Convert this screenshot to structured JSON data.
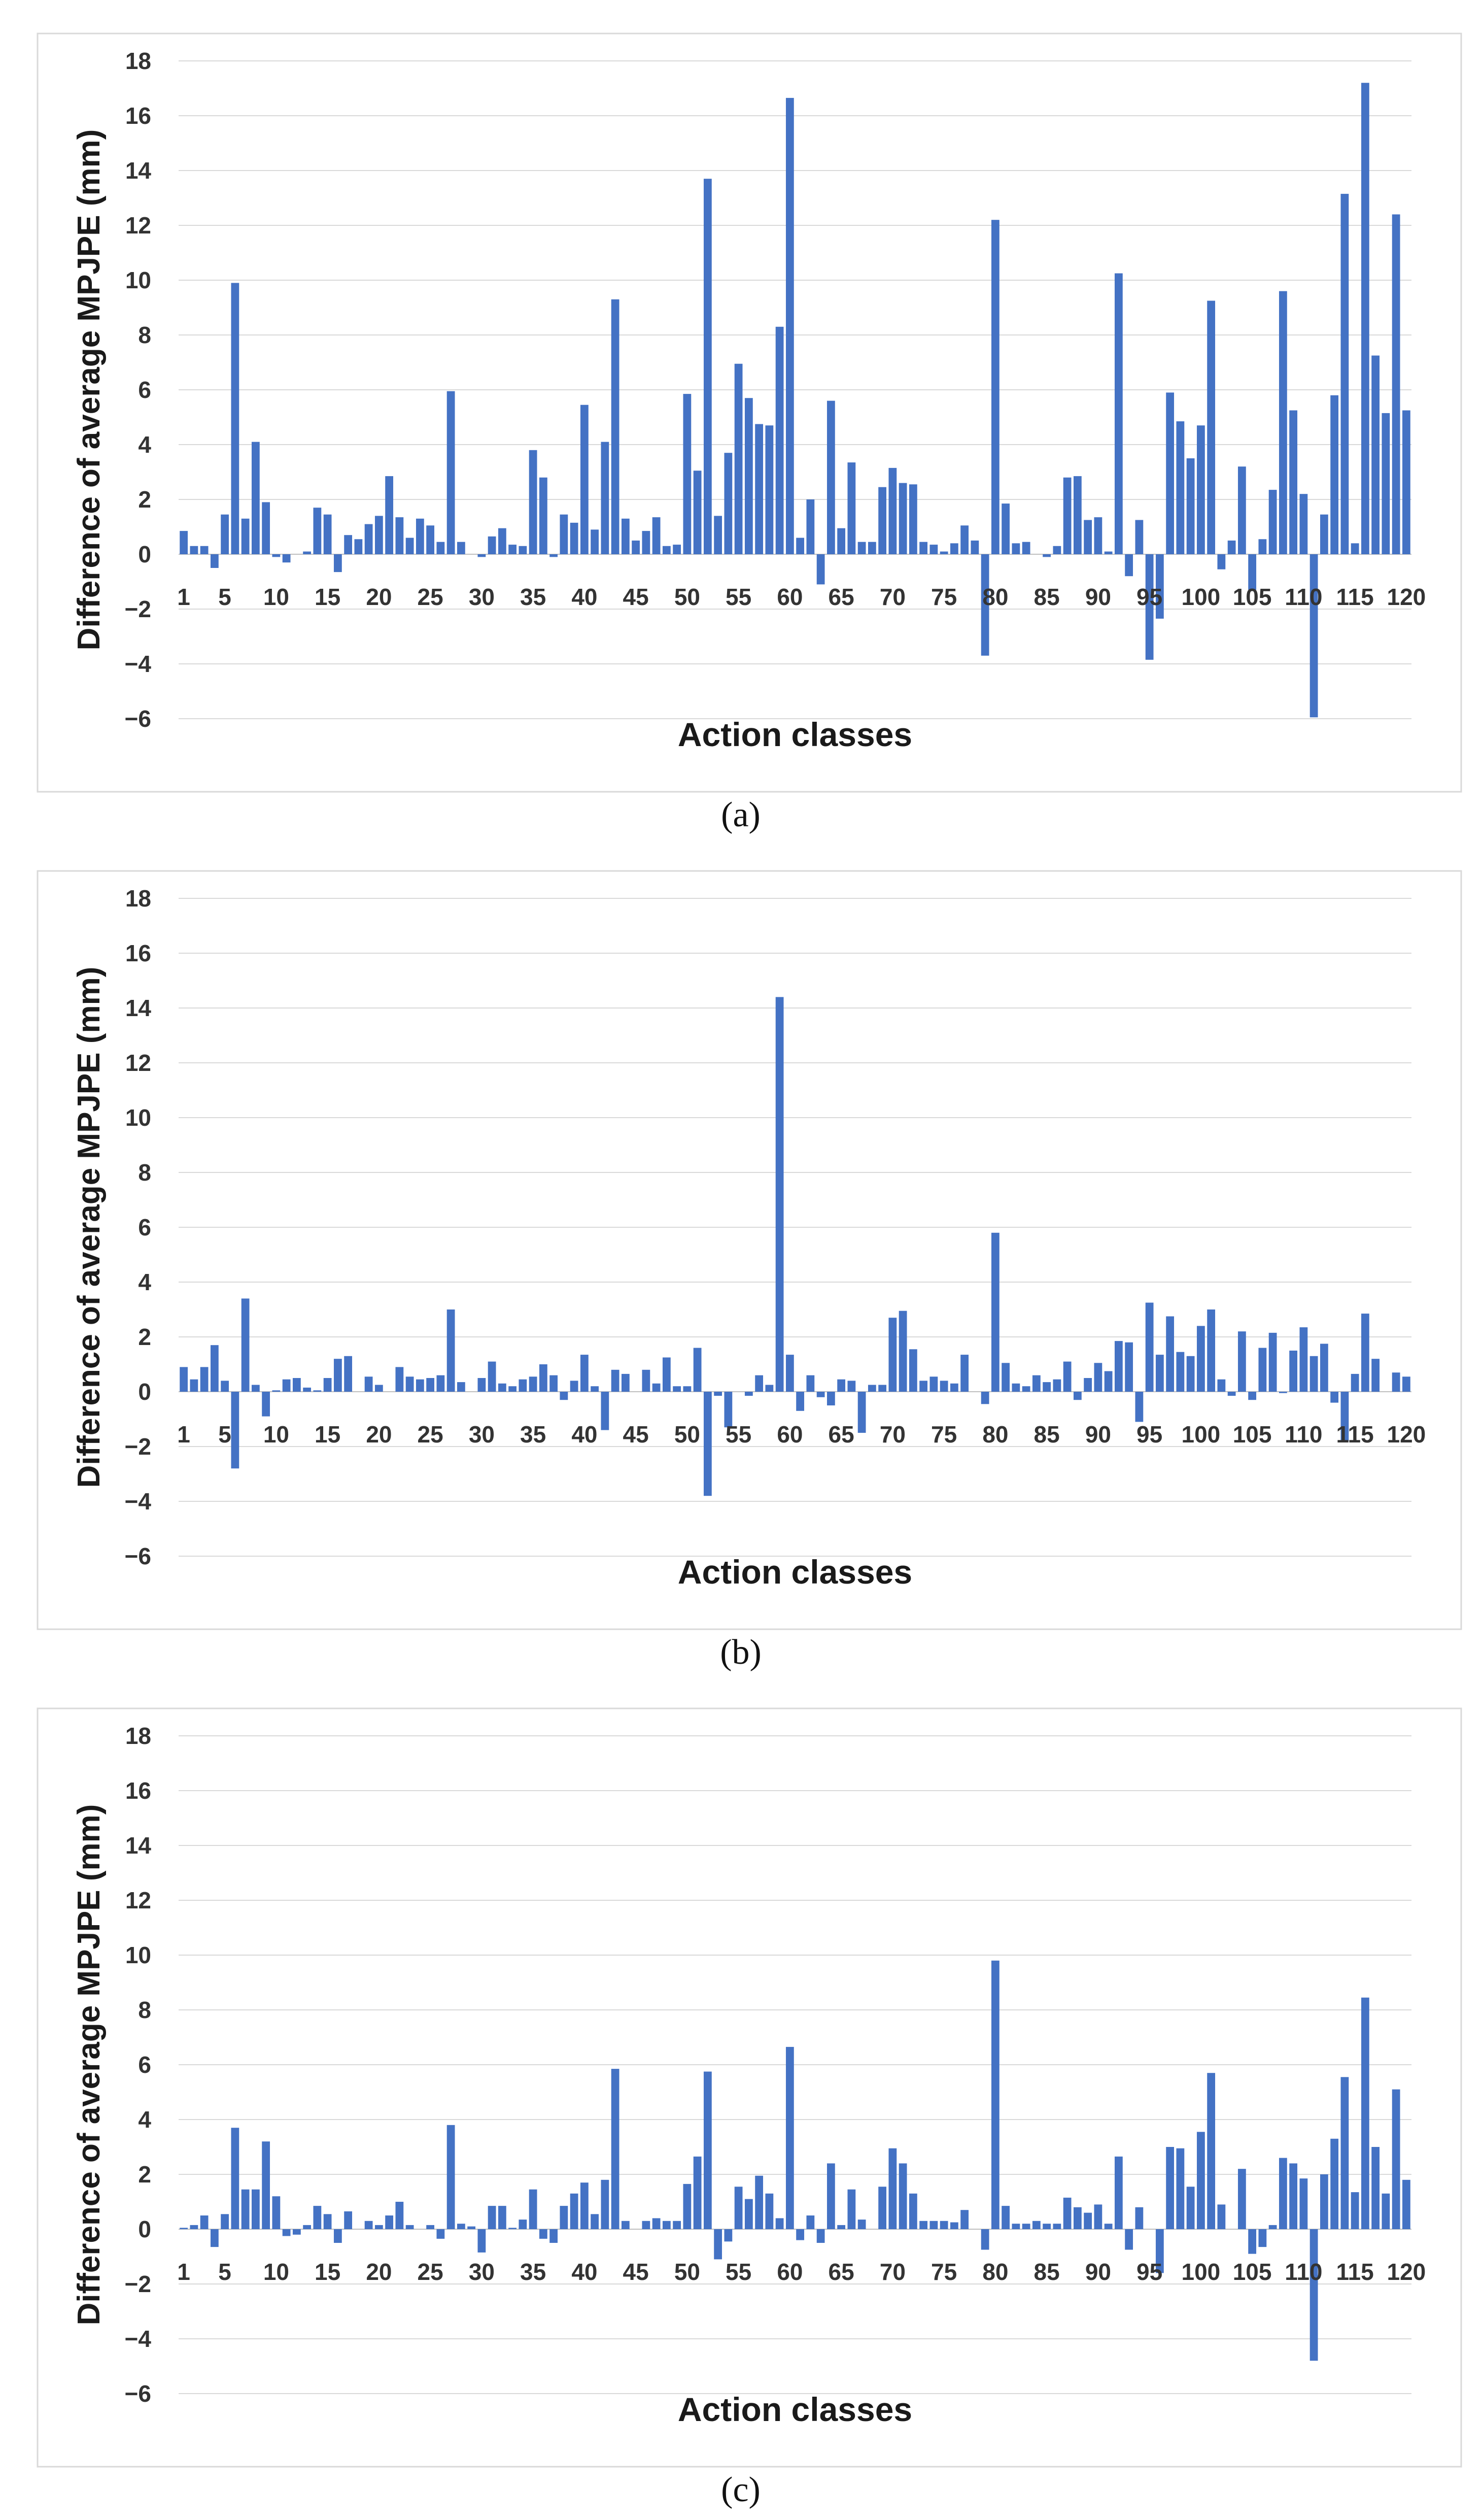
{
  "bar_color": "#4472C4",
  "chart_data": [
    {
      "type": "bar",
      "caption": "(a)",
      "title": "",
      "xlabel": "Action classes",
      "ylabel": "Difference of average MPJPE (mm)",
      "ylim": [
        -6,
        18
      ],
      "yticks": [
        "18",
        "16",
        "14",
        "12",
        "10",
        "8",
        "6",
        "4",
        "2",
        "0",
        "−2",
        "−4",
        "−6"
      ],
      "xticks": [
        "1",
        "5",
        "10",
        "15",
        "20",
        "25",
        "30",
        "35",
        "40",
        "45",
        "50",
        "55",
        "60",
        "65",
        "70",
        "75",
        "80",
        "85",
        "90",
        "95",
        "100",
        "105",
        "110",
        "115",
        "120"
      ],
      "categories_count": 120,
      "values": [
        0.85,
        0.3,
        0.3,
        -0.5,
        1.45,
        9.9,
        1.3,
        4.1,
        1.9,
        -0.1,
        -0.3,
        0.0,
        0.1,
        1.7,
        1.45,
        -0.65,
        0.7,
        0.55,
        1.1,
        1.4,
        2.85,
        1.35,
        0.6,
        1.3,
        1.05,
        0.45,
        5.95,
        0.45,
        0.0,
        -0.1,
        0.65,
        0.95,
        0.35,
        0.3,
        3.8,
        2.8,
        -0.1,
        1.45,
        1.15,
        5.45,
        0.9,
        4.1,
        9.3,
        1.3,
        0.5,
        0.85,
        1.35,
        0.3,
        0.35,
        5.85,
        3.05,
        13.7,
        1.4,
        3.7,
        6.95,
        5.7,
        4.75,
        4.7,
        8.3,
        16.65,
        0.6,
        2.0,
        -1.1,
        5.6,
        0.95,
        3.35,
        0.45,
        0.45,
        2.45,
        3.15,
        2.6,
        2.55,
        0.45,
        0.35,
        0.1,
        0.4,
        1.05,
        0.5,
        -3.7,
        12.2,
        1.85,
        0.4,
        0.45,
        0.0,
        -0.1,
        0.3,
        2.8,
        2.85,
        1.25,
        1.35,
        0.1,
        10.25,
        -0.8,
        1.25,
        -3.85,
        -2.35,
        5.9,
        4.85,
        3.5,
        4.7,
        9.25,
        -0.55,
        0.5,
        3.2,
        -1.3,
        0.55,
        2.35,
        9.6,
        5.25,
        2.2,
        -5.95,
        1.45,
        5.8,
        13.15,
        0.4,
        17.2,
        7.25,
        5.15,
        12.4,
        5.25
      ]
    },
    {
      "type": "bar",
      "caption": "(b)",
      "title": "",
      "xlabel": "Action classes",
      "ylabel": "Difference of average MPJPE (mm)",
      "ylim": [
        -6,
        18
      ],
      "yticks": [
        "18",
        "16",
        "14",
        "12",
        "10",
        "8",
        "6",
        "4",
        "2",
        "0",
        "−2",
        "−4",
        "−6"
      ],
      "xticks": [
        "1",
        "5",
        "10",
        "15",
        "20",
        "25",
        "30",
        "35",
        "40",
        "45",
        "50",
        "55",
        "60",
        "65",
        "70",
        "75",
        "80",
        "85",
        "90",
        "95",
        "100",
        "105",
        "110",
        "115",
        "120"
      ],
      "categories_count": 120,
      "values": [
        0.9,
        0.45,
        0.9,
        1.7,
        0.4,
        -2.8,
        3.4,
        0.25,
        -0.9,
        0.05,
        0.45,
        0.5,
        0.15,
        0.05,
        0.5,
        1.2,
        1.3,
        0.0,
        0.55,
        0.25,
        0.0,
        0.9,
        0.55,
        0.45,
        0.5,
        0.6,
        3.0,
        0.35,
        0.0,
        0.5,
        1.1,
        0.3,
        0.2,
        0.45,
        0.55,
        1.0,
        0.6,
        -0.3,
        0.4,
        1.35,
        0.2,
        -1.4,
        0.8,
        0.65,
        0.0,
        0.8,
        0.3,
        1.25,
        0.2,
        0.2,
        1.6,
        -3.8,
        -0.15,
        -1.3,
        0.0,
        -0.15,
        0.6,
        0.25,
        14.4,
        1.35,
        -0.7,
        0.6,
        -0.2,
        -0.5,
        0.45,
        0.4,
        -1.5,
        0.25,
        0.25,
        2.7,
        2.95,
        1.55,
        0.4,
        0.55,
        0.4,
        0.3,
        1.35,
        0.0,
        -0.45,
        5.8,
        1.05,
        0.3,
        0.2,
        0.6,
        0.35,
        0.45,
        1.1,
        -0.3,
        0.5,
        1.05,
        0.75,
        1.85,
        1.8,
        -1.1,
        3.25,
        1.35,
        2.75,
        1.45,
        1.3,
        2.4,
        3.0,
        0.45,
        -0.15,
        2.2,
        -0.3,
        1.6,
        2.15,
        -0.05,
        1.5,
        2.35,
        1.3,
        1.75,
        -0.4,
        -1.8,
        0.65,
        2.85,
        1.2,
        0.0,
        0.7,
        0.55
      ]
    },
    {
      "type": "bar",
      "caption": "(c)",
      "title": "",
      "xlabel": "Action classes",
      "ylabel": "Difference of average MPJPE (mm)",
      "ylim": [
        -6,
        18
      ],
      "yticks": [
        "18",
        "16",
        "14",
        "12",
        "10",
        "8",
        "6",
        "4",
        "2",
        "0",
        "−2",
        "−4",
        "−6"
      ],
      "xticks": [
        "1",
        "5",
        "10",
        "15",
        "20",
        "25",
        "30",
        "35",
        "40",
        "45",
        "50",
        "55",
        "60",
        "65",
        "70",
        "75",
        "80",
        "85",
        "90",
        "95",
        "100",
        "105",
        "110",
        "115",
        "120"
      ],
      "categories_count": 120,
      "values": [
        0.05,
        0.15,
        0.5,
        -0.65,
        0.55,
        3.7,
        1.45,
        1.45,
        3.2,
        1.2,
        -0.25,
        -0.2,
        0.15,
        0.85,
        0.55,
        -0.5,
        0.65,
        0.0,
        0.3,
        0.15,
        0.5,
        1.0,
        0.15,
        0.0,
        0.15,
        -0.35,
        3.8,
        0.2,
        0.1,
        -0.85,
        0.85,
        0.85,
        0.05,
        0.35,
        1.45,
        -0.35,
        -0.5,
        0.85,
        1.3,
        1.7,
        0.55,
        1.8,
        5.85,
        0.3,
        0.0,
        0.3,
        0.4,
        0.3,
        0.3,
        1.65,
        2.65,
        5.75,
        -1.1,
        -0.45,
        1.55,
        1.1,
        1.95,
        1.3,
        0.4,
        6.65,
        -0.4,
        0.5,
        -0.5,
        2.4,
        0.15,
        1.45,
        0.35,
        0.0,
        1.55,
        2.95,
        2.4,
        1.3,
        0.3,
        0.3,
        0.3,
        0.25,
        0.7,
        0.0,
        -0.75,
        9.8,
        0.85,
        0.2,
        0.2,
        0.3,
        0.2,
        0.2,
        1.15,
        0.8,
        0.6,
        0.9,
        0.2,
        2.65,
        -0.75,
        0.8,
        0.0,
        -1.6,
        3.0,
        2.95,
        1.55,
        3.55,
        5.7,
        0.9,
        0.0,
        2.2,
        -0.9,
        -0.65,
        0.15,
        2.6,
        2.4,
        1.85,
        -4.8,
        2.0,
        3.3,
        5.55,
        1.35,
        8.45,
        3.0,
        1.3,
        5.1,
        1.8
      ]
    }
  ]
}
